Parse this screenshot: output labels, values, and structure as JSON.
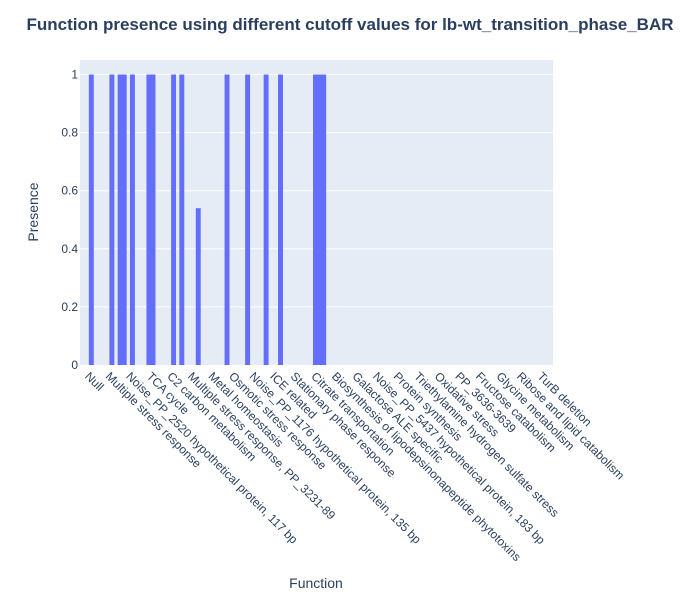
{
  "chart_data": {
    "type": "bar",
    "title": "Function presence using different cutoff values for lb-wt_transition_phase_BAR",
    "xlabel": "Function",
    "ylabel": "Presence",
    "ylim": [
      0,
      1.05
    ],
    "yticks": [
      0,
      0.2,
      0.4,
      0.6,
      0.8,
      1
    ],
    "ytick_labels": [
      "0",
      "0.2",
      "0.4",
      "0.6",
      "0.8",
      "1"
    ],
    "grid": true,
    "bar_color": "#636efa",
    "plot_bg": "#e5ecf6",
    "categories": [
      "Null",
      "Multiple stress response",
      "Noise_PP_2520 hypothetical protein, 117 bp",
      "TCA cycle",
      "C2 carbon metabolism",
      "Multiple stress response, PP_3231-89",
      "Metal homeostasis",
      "Osmotic stress response",
      "Noise_PP_1176 hypothetical protein, 135 bp",
      "ICE related",
      "Stationary phase response",
      "Citrate transportation",
      "Biosynthesis of lipodepsinonapeptide phytotoxins",
      "Galactose ALE specific",
      "Noise_PP_5437 hypothetical protein, 183 bp",
      "Protein synthesis",
      "Triethylamine hydrogen sulfate stress",
      "Oxidative stress",
      "PP_3636-3639",
      "Fructose catabolism",
      "Glycine metabolism",
      "Ribose and lipid catabolism",
      "TurB deletion"
    ],
    "bars": [
      {
        "x": 0.05,
        "y": 1
      },
      {
        "x": 1.05,
        "y": 1
      },
      {
        "x": 1.45,
        "y": 1
      },
      {
        "x": 1.65,
        "y": 1
      },
      {
        "x": 2.05,
        "y": 1
      },
      {
        "x": 2.85,
        "y": 1
      },
      {
        "x": 3.05,
        "y": 1
      },
      {
        "x": 4.05,
        "y": 1
      },
      {
        "x": 4.45,
        "y": 1
      },
      {
        "x": 5.25,
        "y": 0.54
      },
      {
        "x": 6.65,
        "y": 1
      },
      {
        "x": 7.65,
        "y": 1
      },
      {
        "x": 8.55,
        "y": 1
      },
      {
        "x": 9.25,
        "y": 1
      },
      {
        "x": 10.95,
        "y": 1
      },
      {
        "x": 11.15,
        "y": 1
      },
      {
        "x": 11.35,
        "y": 1
      }
    ]
  }
}
